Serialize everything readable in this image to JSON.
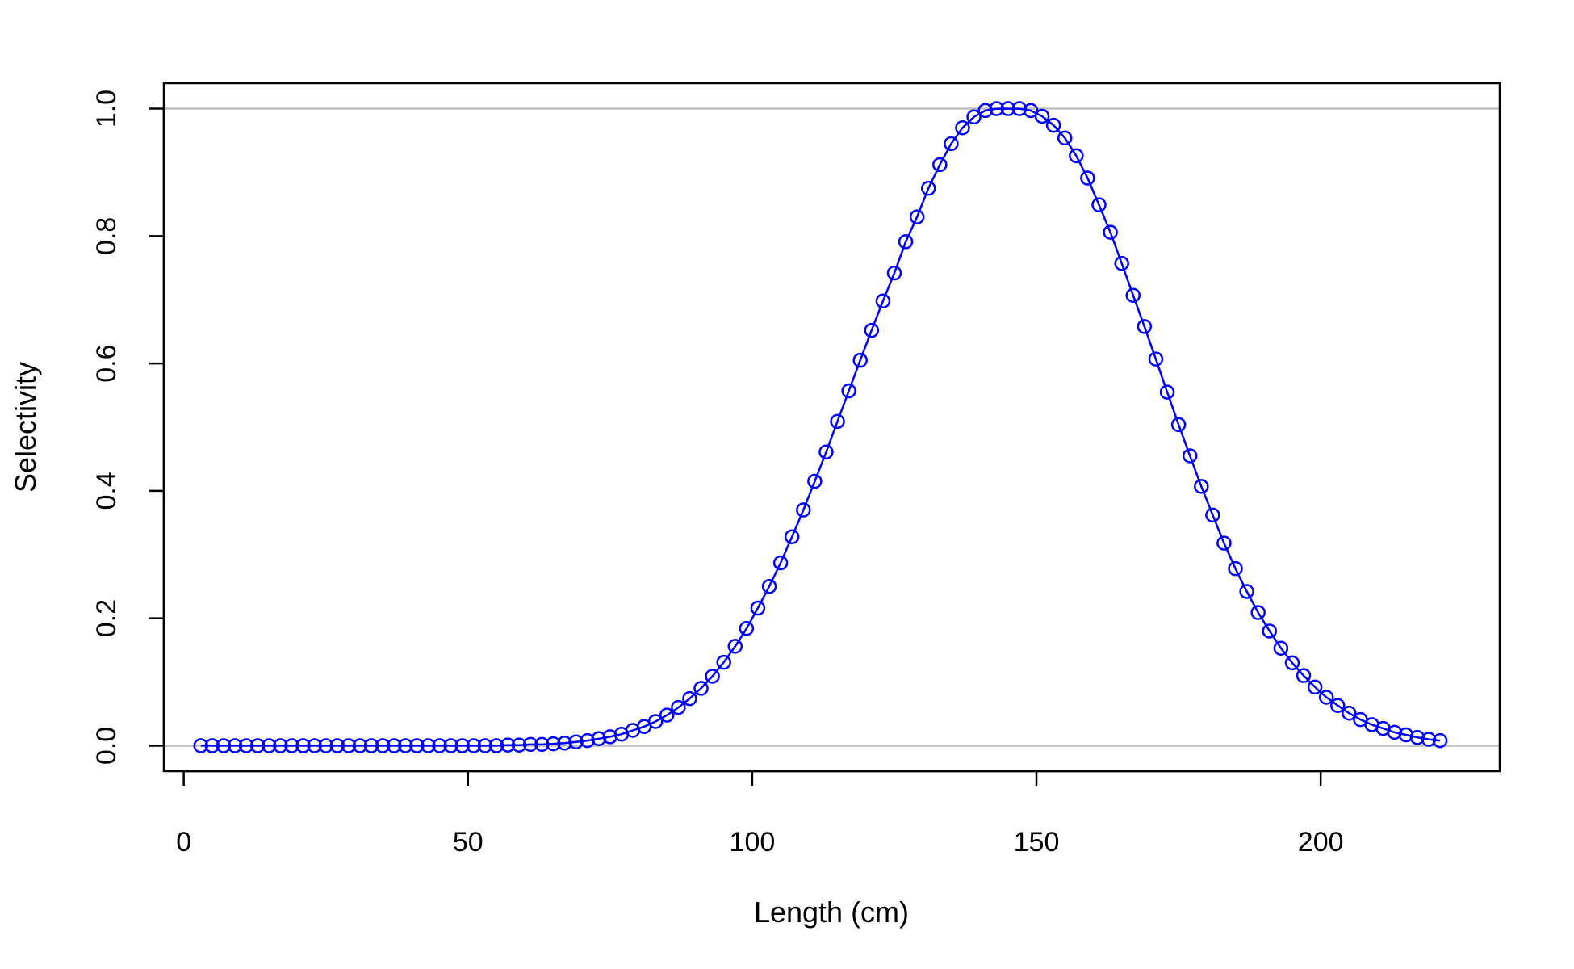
{
  "chart_data": {
    "type": "line",
    "title": "",
    "xlabel": "Length (cm)",
    "ylabel": "Selectivity",
    "xlim": [
      -3.5,
      231.5
    ],
    "ylim": [
      -0.04,
      1.04
    ],
    "x_ticks": [
      0,
      50,
      100,
      150,
      200
    ],
    "x_tick_labels": [
      "0",
      "50",
      "100",
      "150",
      "200"
    ],
    "y_ticks": [
      0.0,
      0.2,
      0.4,
      0.6,
      0.8,
      1.0
    ],
    "y_tick_labels": [
      "0.0",
      "0.2",
      "0.4",
      "0.6",
      "0.8",
      "1.0"
    ],
    "reference_lines_y": [
      0,
      1
    ],
    "grid": false,
    "legend": "none",
    "series": [
      {
        "color": "#0000ff",
        "marker": "open-circle",
        "line": true,
        "x": [
          3,
          5,
          7,
          9,
          11,
          13,
          15,
          17,
          19,
          21,
          23,
          25,
          27,
          29,
          31,
          33,
          35,
          37,
          39,
          41,
          43,
          45,
          47,
          49,
          51,
          53,
          55,
          57,
          59,
          61,
          63,
          65,
          67,
          69,
          71,
          73,
          75,
          77,
          79,
          81,
          83,
          85,
          87,
          89,
          91,
          93,
          95,
          97,
          99,
          101,
          103,
          105,
          107,
          109,
          111,
          113,
          115,
          117,
          119,
          121,
          123,
          125,
          127,
          129,
          131,
          133,
          135,
          137,
          139,
          141,
          143,
          145,
          147,
          149,
          151,
          153,
          155,
          157,
          159,
          161,
          163,
          165,
          167,
          169,
          171,
          173,
          175,
          177,
          179,
          181,
          183,
          185,
          187,
          189,
          191,
          193,
          195,
          197,
          199,
          201,
          203,
          205,
          207,
          209,
          211,
          213,
          215,
          217,
          219,
          221
        ],
        "y": [
          0.0,
          0.0,
          0.0,
          0.0,
          0.0,
          0.0,
          0.0,
          0.0,
          0.0,
          0.0,
          0.0,
          0.0,
          0.0,
          0.0,
          0.0,
          0.0,
          0.0,
          0.0,
          0.0,
          0.0,
          0.0,
          0.0,
          0.0,
          0.0,
          0.0,
          0.0,
          0.0,
          0.001,
          0.001,
          0.002,
          0.002,
          0.003,
          0.004,
          0.006,
          0.008,
          0.011,
          0.014,
          0.018,
          0.024,
          0.03,
          0.038,
          0.048,
          0.06,
          0.074,
          0.09,
          0.109,
          0.131,
          0.156,
          0.184,
          0.216,
          0.25,
          0.287,
          0.328,
          0.37,
          0.415,
          0.461,
          0.509,
          0.557,
          0.605,
          0.652,
          0.698,
          0.742,
          0.791,
          0.83,
          0.875,
          0.912,
          0.945,
          0.97,
          0.987,
          0.997,
          1.0,
          1.0,
          1.0,
          0.997,
          0.988,
          0.974,
          0.954,
          0.926,
          0.891,
          0.849,
          0.806,
          0.757,
          0.707,
          0.658,
          0.607,
          0.555,
          0.504,
          0.455,
          0.407,
          0.362,
          0.318,
          0.278,
          0.242,
          0.209,
          0.18,
          0.153,
          0.13,
          0.11,
          0.092,
          0.076,
          0.063,
          0.051,
          0.041,
          0.033,
          0.027,
          0.021,
          0.017,
          0.013,
          0.01,
          0.008
        ]
      }
    ]
  }
}
